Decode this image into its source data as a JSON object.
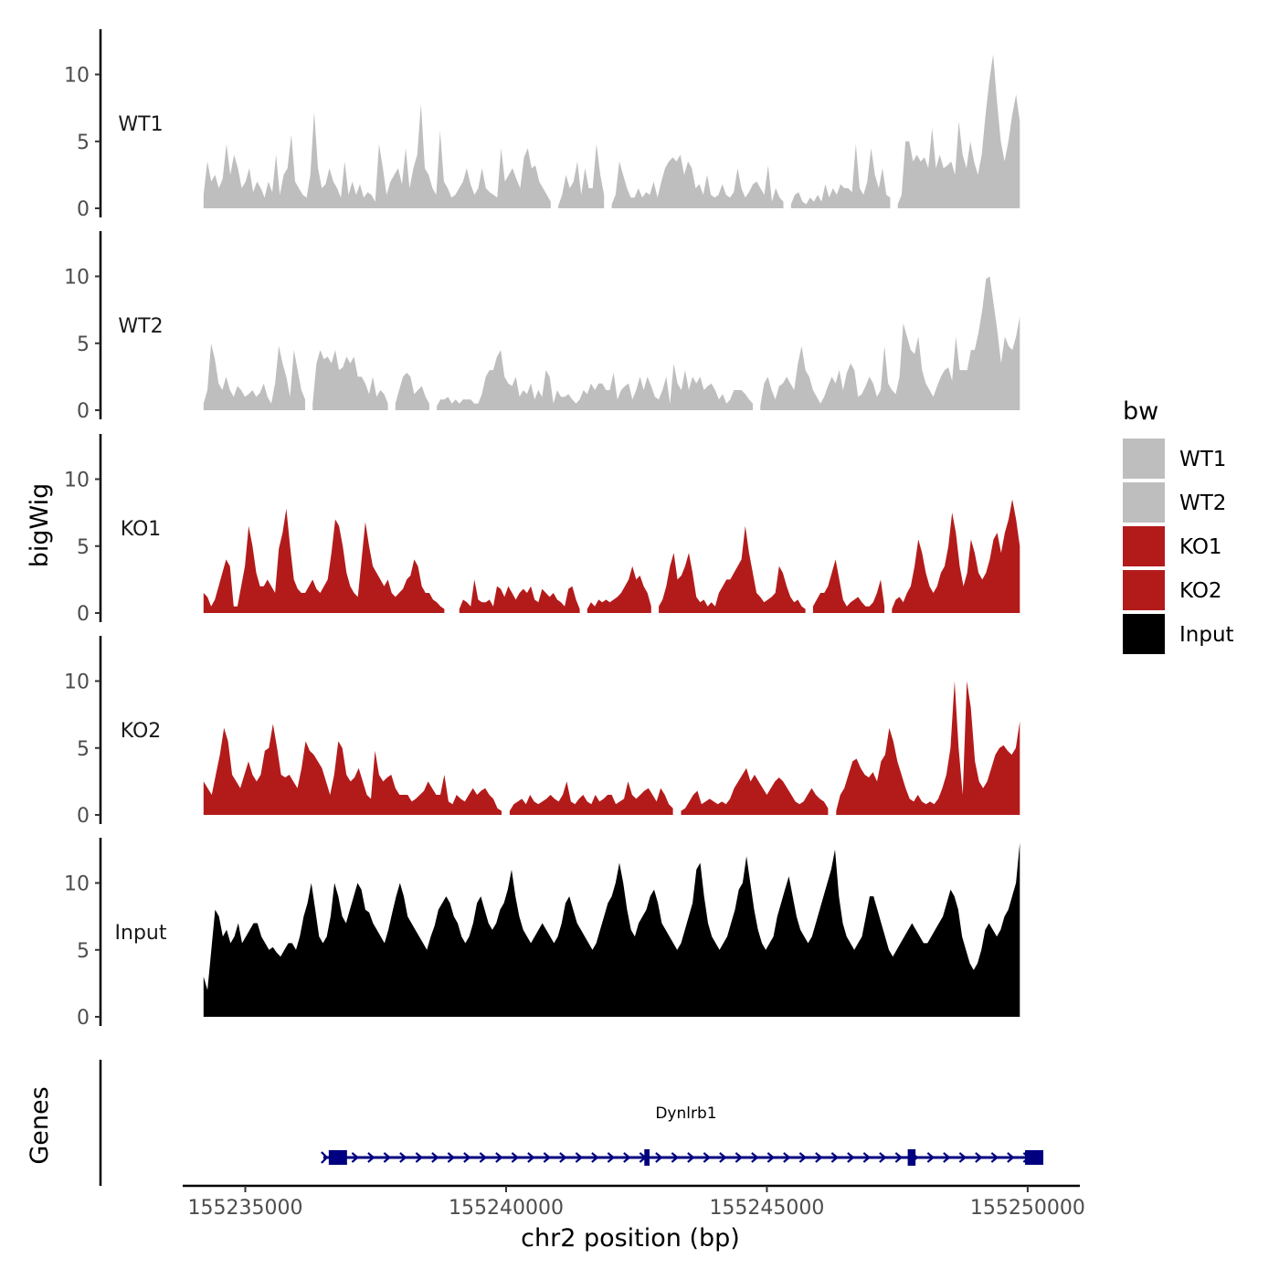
{
  "chart_data": {
    "type": "area",
    "title": "",
    "xlabel": "chr2 position (bp)",
    "ylabel": "bigWig",
    "genes_label": "Genes",
    "xlim": [
      155233800,
      155251000
    ],
    "x_ticks": [
      155235000,
      155240000,
      155245000,
      155250000
    ],
    "x_tick_labels": [
      "155235000",
      "155240000",
      "155245000",
      "155250000"
    ],
    "signal_start": 155234200,
    "signal_end": 155249850,
    "ylim": [
      0,
      13.5
    ],
    "y_ticks": [
      0,
      5,
      10
    ],
    "y_tick_labels": [
      "0",
      "5",
      "10"
    ],
    "series": [
      {
        "name": "WT1",
        "color": "#bebebe",
        "values": [
          1,
          3.5,
          2,
          2.5,
          1.5,
          2.2,
          4.8,
          2.5,
          4,
          3,
          1.5,
          2,
          3,
          1.2,
          2,
          1.5,
          0.8,
          2,
          1.2,
          4,
          1,
          2.5,
          3,
          5.5,
          2,
          1.5,
          1,
          0.8,
          2.5,
          7.2,
          3,
          1.5,
          1.8,
          3,
          2,
          1.5,
          0.8,
          3.5,
          1,
          2,
          1,
          1.8,
          0.8,
          1.2,
          1,
          0.5,
          4.8,
          3,
          1,
          2,
          2.5,
          3,
          1.8,
          4.5,
          1.5,
          3,
          4,
          7.8,
          3,
          2.5,
          1.5,
          1,
          5.8,
          2,
          1.5,
          0.8,
          1,
          1.5,
          2,
          3,
          1.8,
          1,
          1.5,
          3,
          1.5,
          1.2,
          1,
          0.8,
          4.5,
          2,
          2.5,
          3,
          2.2,
          1.5,
          3.8,
          4.5,
          3,
          3.2,
          2,
          1.5,
          1,
          0.5,
          null,
          0.2,
          1,
          2.5,
          1.5,
          2,
          3.5,
          1,
          3,
          1.5,
          1.5,
          4.8,
          2.5,
          1,
          null,
          0.3,
          1,
          3.5,
          2.5,
          1.5,
          0.8,
          0.8,
          1.5,
          0.8,
          1.2,
          1,
          2,
          0.8,
          2,
          3,
          3.5,
          3.8,
          3.5,
          4,
          2.5,
          3.5,
          3,
          1.5,
          1.8,
          1,
          2.5,
          1,
          0.8,
          1,
          1.8,
          1,
          0.8,
          1.2,
          3,
          1.5,
          0.8,
          1.2,
          1.8,
          2,
          1.5,
          1,
          3.2,
          0.5,
          1.5,
          0.8,
          0.5,
          null,
          0.3,
          1,
          1.2,
          0.5,
          0.3,
          0.8,
          0.5,
          1,
          0.5,
          1.8,
          0.8,
          1.5,
          1,
          1.8,
          1.5,
          1.5,
          1.2,
          4.8,
          1.5,
          1,
          2,
          4.5,
          2.5,
          1.5,
          3,
          1,
          0.8,
          null,
          0.3,
          1,
          5,
          5,
          3.5,
          4,
          3.5,
          3.8,
          3,
          6,
          3,
          4,
          3,
          3.2,
          3.5,
          2.5,
          6.5,
          4,
          3,
          5,
          3.5,
          2.5,
          4,
          7,
          9.5,
          11.5,
          8,
          5,
          3.5,
          5,
          7,
          8.5,
          6.5
        ]
      },
      {
        "name": "WT2",
        "color": "#bebebe",
        "values": [
          0.5,
          1.5,
          5,
          3.8,
          2,
          1.5,
          2.5,
          1.5,
          1,
          1.8,
          1.5,
          1,
          1.2,
          1.5,
          1,
          1.3,
          2,
          1,
          0.5,
          2,
          4.8,
          3.5,
          2.5,
          1,
          4.5,
          3,
          1.5,
          0.8,
          null,
          0.5,
          3.5,
          4.5,
          3.8,
          4,
          3.5,
          4.5,
          3,
          3.2,
          4,
          3.5,
          4,
          2.5,
          2.5,
          2,
          1.2,
          2.5,
          1,
          1.5,
          1.2,
          0.5,
          null,
          0.5,
          1.5,
          2.5,
          2.8,
          2.5,
          1.2,
          1.5,
          1.8,
          1,
          0.5,
          null,
          0.3,
          0.8,
          0.8,
          1,
          0.5,
          0.8,
          0.5,
          0.8,
          0.8,
          0.8,
          0.5,
          0.5,
          1.2,
          2.5,
          3,
          3,
          4,
          4.5,
          2.5,
          2,
          1.8,
          2.5,
          1,
          1.5,
          1.2,
          2,
          0.8,
          1.5,
          1,
          3,
          2.5,
          0.5,
          1.5,
          1,
          1,
          1.2,
          0.8,
          0.5,
          0.8,
          1.5,
          1.2,
          2,
          1.5,
          2,
          2,
          1.5,
          1.5,
          2.8,
          0.8,
          1.5,
          1.8,
          2,
          0.8,
          1.5,
          2.5,
          1.5,
          2.5,
          1.8,
          1,
          0.8,
          1.5,
          2.5,
          0.5,
          3.5,
          2,
          1.5,
          3,
          1.5,
          2.5,
          2,
          2.5,
          1.5,
          1.8,
          2,
          1.5,
          0.8,
          1.2,
          0.5,
          0.8,
          1.5,
          1.5,
          1.5,
          1.2,
          0.8,
          0.5,
          null,
          0.3,
          2,
          2.5,
          1.5,
          0.8,
          1.8,
          2,
          2.5,
          2,
          1.5,
          3.5,
          4.8,
          3,
          2.5,
          1.5,
          1,
          0.5,
          1,
          1.8,
          2.5,
          2,
          3,
          1.5,
          2.8,
          3.5,
          3,
          1,
          1.2,
          1.8,
          2.5,
          2,
          1,
          1.5,
          4.8,
          2,
          1.5,
          1.2,
          2.5,
          6.5,
          5.5,
          4.5,
          4.2,
          5.5,
          3,
          2,
          1.5,
          1,
          1.8,
          2.5,
          3,
          3.2,
          2.2,
          5.5,
          3,
          3,
          3,
          4.5,
          4.5,
          5.8,
          7.5,
          9.8,
          10,
          8,
          6,
          3.5,
          5.5,
          4.8,
          4.5,
          5.5,
          7
        ]
      },
      {
        "name": "KO1",
        "color": "#b31b1b",
        "values": [
          1.5,
          1.2,
          0.5,
          1,
          2,
          3,
          4,
          3.5,
          0.5,
          0.5,
          2,
          3.5,
          6.5,
          5,
          3,
          2,
          2,
          2.5,
          2,
          1.5,
          4.8,
          6,
          7.8,
          5,
          2.5,
          1.8,
          1.5,
          1.5,
          2,
          2.5,
          1.8,
          1.5,
          2,
          2.5,
          4.5,
          7,
          6.5,
          5,
          3,
          2,
          1.5,
          1.2,
          4,
          6.8,
          5,
          3.5,
          3,
          2.5,
          2,
          2.5,
          1.5,
          1.2,
          1.5,
          1.8,
          2.5,
          2.8,
          4,
          3.5,
          2,
          1.5,
          1.5,
          1,
          0.8,
          0.5,
          0.3,
          null,
          null,
          null,
          0.3,
          1,
          0.8,
          0.5,
          2.5,
          1,
          0.8,
          0.8,
          1,
          0.5,
          2,
          1.8,
          1.2,
          2,
          1.5,
          1,
          1.5,
          1.8,
          1.5,
          2,
          1,
          0.8,
          1.8,
          1.5,
          1.2,
          1.5,
          1,
          0.8,
          0.5,
          1.8,
          2,
          1,
          0.3,
          null,
          0.3,
          0.8,
          0.5,
          1,
          0.8,
          1,
          0.8,
          1,
          1.2,
          1.5,
          2,
          2.5,
          3.5,
          2.5,
          2.8,
          2,
          1.5,
          0.5,
          null,
          0.5,
          1,
          2,
          3.5,
          4.5,
          2.5,
          2.8,
          3.5,
          4.5,
          3,
          1.2,
          0.8,
          1,
          0.5,
          0.8,
          0.5,
          1.5,
          2,
          2.5,
          2.5,
          3,
          3.5,
          4,
          6.5,
          4.5,
          3,
          1.5,
          1.2,
          0.8,
          1,
          1.2,
          1.5,
          3.5,
          3,
          2,
          1.2,
          0.8,
          1,
          0.5,
          0.3,
          null,
          0.5,
          1,
          1.5,
          1.5,
          2,
          3,
          4,
          2.5,
          1,
          0.5,
          0.8,
          1,
          1.2,
          0.8,
          0.5,
          0.5,
          0.8,
          1.5,
          2.5,
          0.5,
          null,
          0.3,
          1,
          1.2,
          0.8,
          1.5,
          2,
          3.5,
          5.5,
          4.5,
          3,
          2,
          1.5,
          2,
          3,
          3.5,
          5,
          7.5,
          6,
          3.5,
          2,
          3,
          5.5,
          4.5,
          3,
          2.5,
          3,
          4,
          5.5,
          6,
          4.5,
          6,
          7,
          8.5,
          7,
          5
        ]
      },
      {
        "name": "KO2",
        "color": "#b31b1b",
        "values": [
          2.5,
          2,
          1.5,
          3,
          4.5,
          6.5,
          5.5,
          3,
          2.5,
          2,
          3,
          4,
          3,
          2.5,
          3,
          4.8,
          5,
          6.8,
          5,
          3,
          2.8,
          3,
          2.5,
          2,
          3.5,
          5.5,
          4.8,
          4.5,
          4,
          3.5,
          2.5,
          1.5,
          3,
          5.5,
          5,
          3,
          2.5,
          2.8,
          3.5,
          2.5,
          1.5,
          1.2,
          4.8,
          3,
          2.5,
          2.8,
          3,
          2,
          1.5,
          1.5,
          1.5,
          1,
          1.2,
          1.5,
          1.8,
          2.5,
          2,
          1.5,
          1.5,
          3,
          1,
          0.8,
          1.5,
          1.2,
          1,
          1.5,
          2,
          1.5,
          1.8,
          2,
          1.5,
          1.2,
          0.5,
          0.3,
          null,
          0.3,
          0.8,
          1,
          1.2,
          0.8,
          1.5,
          1,
          0.8,
          1,
          1.2,
          1.5,
          1.2,
          1,
          1.5,
          2.5,
          1,
          0.8,
          1.2,
          1.5,
          1,
          0.8,
          1.5,
          1,
          1.2,
          1.5,
          1.5,
          0.8,
          1,
          1.2,
          2.5,
          1.5,
          1.2,
          1.5,
          1.8,
          2,
          1.5,
          1,
          2,
          1.5,
          0.8,
          0.5,
          null,
          0.3,
          0.5,
          1,
          1.5,
          1.8,
          0.8,
          1,
          1.2,
          1,
          0.8,
          1,
          0.8,
          1.2,
          2,
          2.5,
          3,
          3.5,
          2.5,
          3,
          2.5,
          2,
          1.5,
          2,
          2.5,
          2.8,
          2.5,
          2,
          1.5,
          1,
          0.8,
          1,
          1.5,
          2,
          1.5,
          1.2,
          1,
          0.5,
          null,
          0.3,
          1.5,
          2,
          3,
          4,
          4.2,
          3.5,
          3,
          2.8,
          3.2,
          2.5,
          4,
          4.5,
          6.5,
          5.5,
          4,
          3,
          2,
          1.2,
          1,
          1.5,
          1,
          0.8,
          1,
          0.8,
          1.2,
          2,
          3,
          5,
          10,
          5,
          1.5,
          10,
          8,
          4,
          2.5,
          2,
          2.5,
          3.5,
          4.5,
          5,
          5.2,
          4.8,
          4.5,
          5,
          7
        ]
      },
      {
        "name": "Input",
        "color": "#000000",
        "values": [
          3,
          2,
          5,
          8,
          7.5,
          6,
          6.5,
          5.5,
          6,
          7,
          5.5,
          6,
          6.5,
          7,
          7,
          6,
          5.5,
          5,
          5.2,
          4.8,
          4.5,
          5,
          5.5,
          5.5,
          5,
          6,
          7.5,
          8.5,
          10,
          8,
          6,
          5.5,
          6,
          7.5,
          10,
          9,
          7.5,
          7,
          8,
          9,
          10,
          9.5,
          8,
          7.8,
          7,
          6.5,
          6,
          5.5,
          6.5,
          7.8,
          9,
          10,
          9,
          7.5,
          7,
          6.5,
          6,
          5.5,
          5,
          6,
          6.8,
          8,
          8.5,
          9,
          8.5,
          7.5,
          7,
          6,
          5.5,
          6,
          7,
          8.5,
          9,
          8,
          7,
          6.5,
          7,
          8,
          8.5,
          9.5,
          11,
          9,
          7.5,
          6.5,
          6,
          5.5,
          6,
          6.5,
          7,
          6.5,
          6,
          5.5,
          6,
          7,
          8.5,
          9,
          8,
          7,
          6.5,
          6,
          5.5,
          5,
          5.5,
          6.5,
          7.5,
          8.5,
          9,
          10,
          11.5,
          10,
          8,
          6.5,
          6,
          7,
          7.5,
          8,
          9,
          9.5,
          8.5,
          7,
          6.5,
          6,
          5.5,
          5,
          5.5,
          6.5,
          7.5,
          8.5,
          11,
          11.5,
          9,
          7,
          6,
          5.5,
          5,
          5.5,
          6,
          7,
          8,
          9.5,
          10,
          12,
          10,
          8,
          6.5,
          5.5,
          5,
          5.5,
          6,
          7.5,
          8.5,
          9.5,
          10.5,
          9,
          7.5,
          6.5,
          6,
          5.5,
          6,
          7,
          8,
          9,
          10,
          11,
          12.5,
          9,
          7,
          6,
          5.5,
          5,
          5.5,
          6,
          7.5,
          9,
          9,
          8,
          7,
          6,
          5,
          4.5,
          5,
          5.5,
          6,
          6.5,
          7,
          6.5,
          6,
          5.5,
          5.5,
          6,
          6.5,
          7,
          7.5,
          8.5,
          9.5,
          9,
          8,
          6,
          5,
          4,
          3.5,
          4,
          5,
          6.5,
          7,
          6.5,
          6,
          6.5,
          7.5,
          8,
          9,
          10,
          13
        ]
      }
    ],
    "gene": {
      "name": "Dynlrb1",
      "start": 155236600,
      "end": 155250300,
      "strand": "+",
      "color": "#000080",
      "exons": [
        {
          "start": 155236600,
          "end": 155236950
        },
        {
          "start": 155242650,
          "end": 155242750
        },
        {
          "start": 155247700,
          "end": 155247850
        },
        {
          "start": 155249950,
          "end": 155250300
        }
      ]
    },
    "legend": {
      "title": "bw",
      "position": "right",
      "entries": [
        {
          "label": "WT1",
          "color": "#bebebe"
        },
        {
          "label": "WT2",
          "color": "#bebebe"
        },
        {
          "label": "KO1",
          "color": "#b31b1b"
        },
        {
          "label": "KO2",
          "color": "#b31b1b"
        },
        {
          "label": "Input",
          "color": "#000000"
        }
      ]
    },
    "grid": false
  }
}
